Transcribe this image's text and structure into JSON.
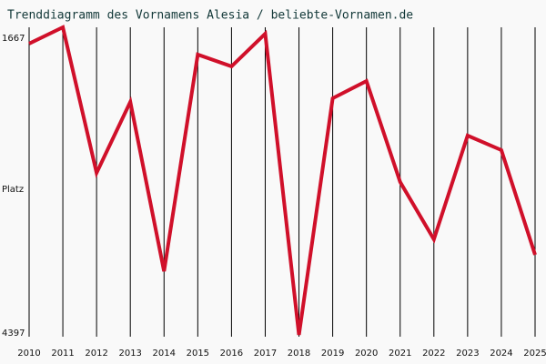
{
  "chart_data": {
    "type": "line",
    "title": "Trenddiagramm des Vornamens Alesia / beliebte-Vornamen.de",
    "ylabel": "Platz",
    "x": [
      2010,
      2011,
      2012,
      2013,
      2014,
      2015,
      2016,
      2017,
      2018,
      2019,
      2020,
      2021,
      2022,
      2023,
      2024,
      2025
    ],
    "xlim": [
      2010,
      2025
    ],
    "xticks": [
      2010,
      2011,
      2012,
      2013,
      2014,
      2015,
      2016,
      2017,
      2018,
      2019,
      2020,
      2021,
      2022,
      2023,
      2024,
      2025
    ],
    "series": [
      {
        "color": "#d0102a",
        "values": [
          1812,
          1667,
          2959,
          2329,
          3832,
          1909,
          2014,
          1724,
          4397,
          2297,
          2144,
          3040,
          3549,
          2628,
          2757,
          3686
        ]
      }
    ],
    "ylim": [
      4397,
      1667
    ],
    "yticks": [
      1667,
      4397
    ],
    "grid": true
  }
}
